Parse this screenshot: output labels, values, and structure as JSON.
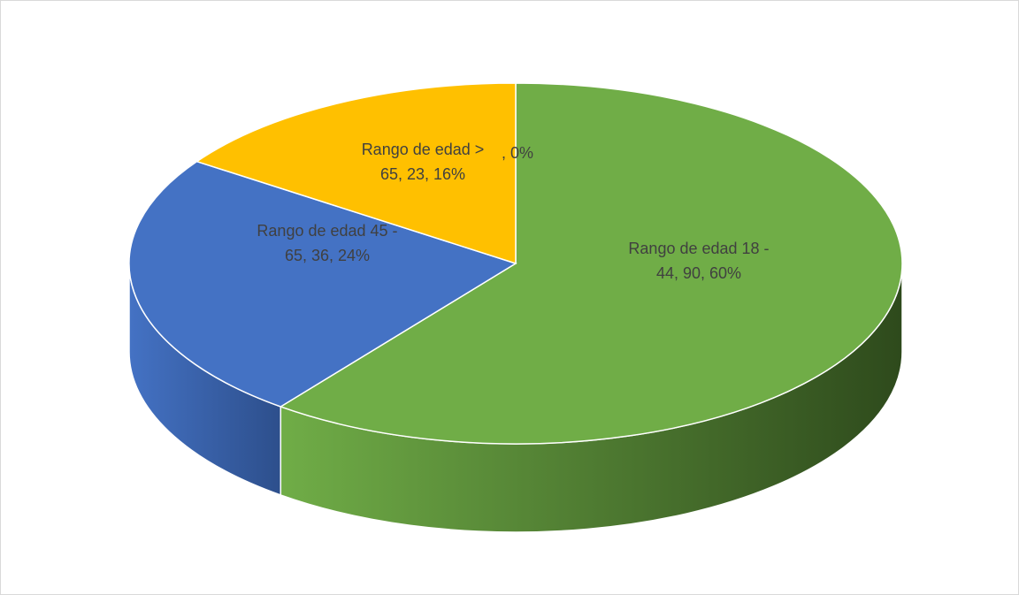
{
  "chart_data": {
    "type": "pie",
    "style": "3d",
    "values": [
      90,
      36,
      23,
      null
    ],
    "value_labels": [
      [
        "Rango de edad 18 -",
        "44, 90, 60%"
      ],
      [
        "Rango de edad 45 -",
        "65, 36, 24%"
      ],
      [
        "Rango de edad >",
        "65, 23, 16%"
      ],
      [
        ", 0%"
      ]
    ],
    "colors": [
      "#70ad47",
      "#4472c4",
      "#ffc000",
      "#a5a5a5"
    ],
    "side_colors": [
      "#2e4a1c",
      "#2d4f8c",
      "#b08400",
      "#6f6f6f"
    ]
  }
}
